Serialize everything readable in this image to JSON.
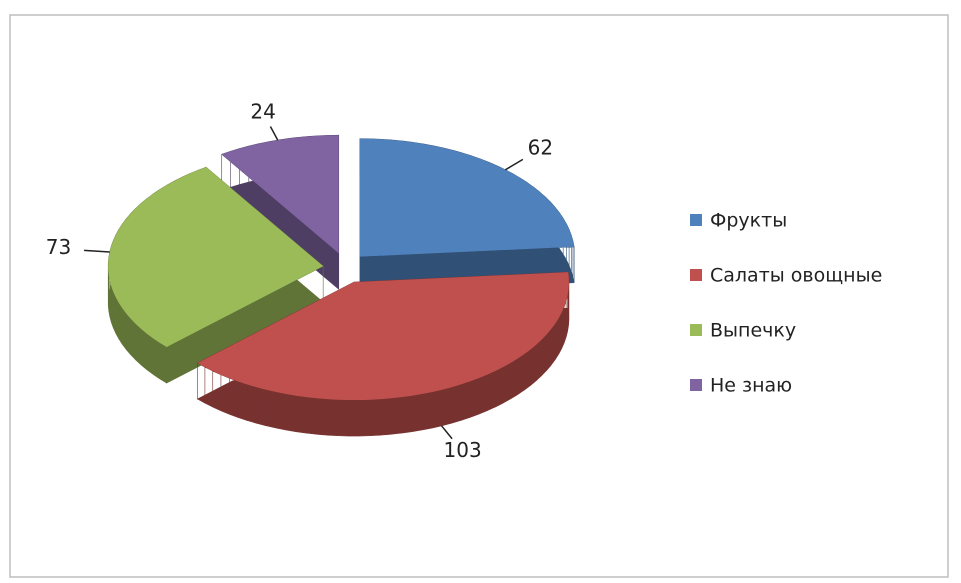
{
  "chart_data": {
    "type": "pie3d",
    "categories": [
      "Фрукты",
      "Салаты овощные",
      "Выпечку",
      "Не знаю"
    ],
    "values": [
      62,
      103,
      73,
      24
    ],
    "colors": [
      "#4f81bd",
      "#c0504d",
      "#9bbb59",
      "#8064a2"
    ],
    "legend": "right"
  }
}
